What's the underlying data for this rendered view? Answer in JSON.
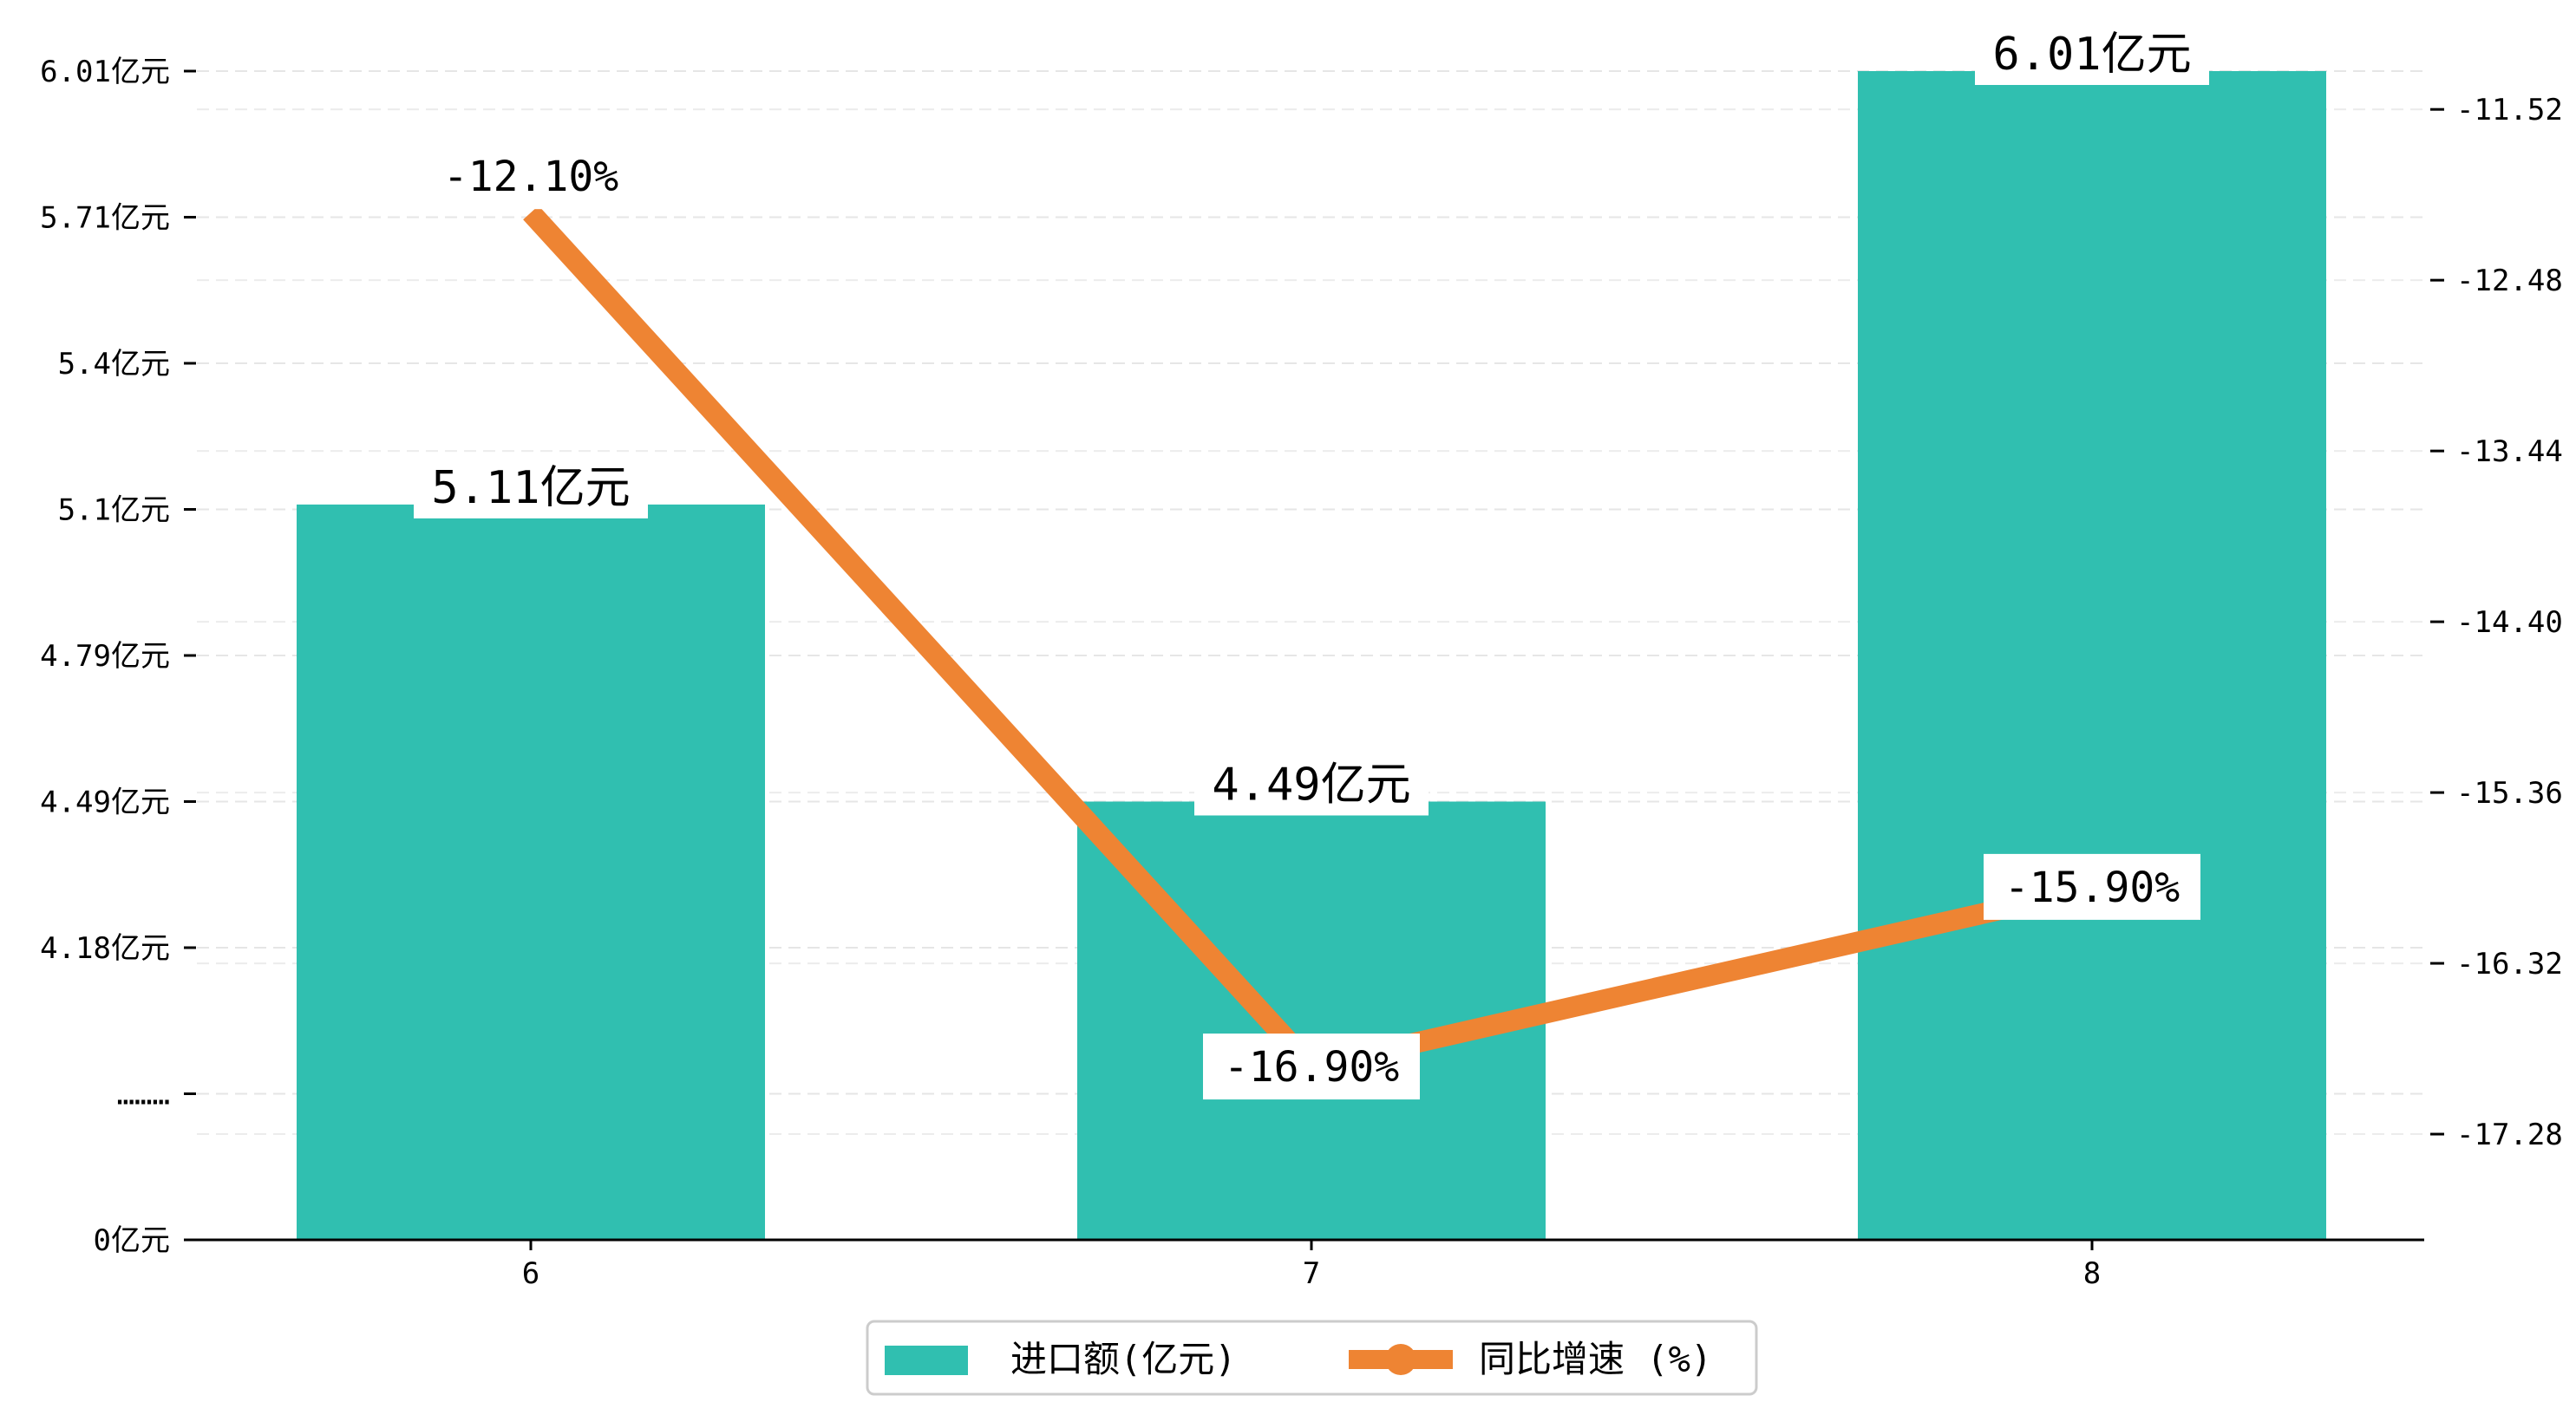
{
  "chart_data": {
    "type": "bar",
    "categories": [
      "6",
      "7",
      "8"
    ],
    "series": [
      {
        "name": "进口额(亿元)",
        "type": "bar",
        "axis": "left",
        "color": "#30BFB0",
        "values": [
          5.11,
          4.49,
          6.01
        ],
        "labels": [
          "5.11亿元",
          "4.49亿元",
          "6.01亿元"
        ]
      },
      {
        "name": "同比增速 (%)",
        "type": "line",
        "axis": "right",
        "color": "#EE8433",
        "values": [
          -12.1,
          -16.9,
          -15.9
        ],
        "labels": [
          "-12.10%",
          "-16.90%",
          "-15.90%"
        ]
      }
    ],
    "y_left": {
      "ticks": [
        {
          "pos": 0,
          "label": "0亿元"
        },
        {
          "pos": 1,
          "label": "………"
        },
        {
          "pos": 2,
          "label": "4.18亿元"
        },
        {
          "pos": 3,
          "label": "4.49亿元"
        },
        {
          "pos": 4,
          "label": "4.79亿元"
        },
        {
          "pos": 5,
          "label": "5.1亿元"
        },
        {
          "pos": 6,
          "label": "5.4亿元"
        },
        {
          "pos": 7,
          "label": "5.71亿元"
        },
        {
          "pos": 8,
          "label": "6.01亿元"
        }
      ]
    },
    "y_right": {
      "range": [
        -17.85,
        -11.1
      ],
      "ticks": [
        -11.52,
        -12.48,
        -13.44,
        -14.4,
        -15.36,
        -16.32,
        -17.28
      ],
      "tick_labels": [
        "-11.52",
        "-12.48",
        "-13.44",
        "-14.40",
        "-15.36",
        "-16.32",
        "-17.28"
      ]
    },
    "grid": true,
    "legend": {
      "position": "bottom-center",
      "items": [
        {
          "label": "进口额(亿元)",
          "marker": "bar",
          "color": "#30BFB0"
        },
        {
          "label": "同比增速 (%)",
          "marker": "line",
          "color": "#EE8433"
        }
      ]
    }
  }
}
